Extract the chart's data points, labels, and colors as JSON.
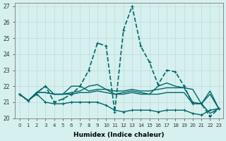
{
  "xlabel": "Humidex (Indice chaleur)",
  "bg_color": "#d6f0ef",
  "line_color": "#006666",
  "grid_color": "#c0dede",
  "xlim": [
    -0.5,
    23.5
  ],
  "ylim": [
    20,
    27.2
  ],
  "yticks": [
    20,
    21,
    22,
    23,
    24,
    25,
    26,
    27
  ],
  "xticks": [
    0,
    1,
    2,
    3,
    4,
    5,
    6,
    7,
    8,
    9,
    10,
    11,
    12,
    13,
    14,
    15,
    16,
    17,
    18,
    19,
    20,
    21,
    22,
    23
  ],
  "series": [
    {
      "y": [
        21.5,
        21.1,
        21.5,
        21.0,
        20.9,
        20.9,
        21.0,
        21.0,
        21.0,
        21.0,
        20.8,
        20.5,
        20.4,
        20.5,
        20.5,
        20.5,
        20.4,
        20.5,
        20.5,
        20.5,
        20.3,
        20.2,
        20.5,
        20.6
      ],
      "lw": 1.0,
      "ls": "-",
      "marker": true
    },
    {
      "y": [
        21.5,
        21.1,
        21.6,
        21.6,
        21.5,
        21.5,
        21.5,
        21.6,
        21.6,
        21.7,
        21.6,
        21.5,
        21.5,
        21.6,
        21.5,
        21.5,
        21.5,
        21.6,
        21.6,
        21.6,
        20.9,
        20.9,
        21.5,
        20.6
      ],
      "lw": 1.0,
      "ls": "-",
      "marker": false
    },
    {
      "y": [
        21.5,
        21.1,
        21.6,
        22.0,
        21.5,
        21.5,
        22.0,
        22.0,
        21.7,
        21.8,
        21.8,
        21.7,
        21.7,
        21.8,
        21.7,
        21.7,
        21.8,
        21.9,
        21.9,
        21.9,
        21.8,
        20.9,
        21.7,
        20.6
      ],
      "lw": 1.0,
      "ls": "-",
      "marker": false
    },
    {
      "y": [
        21.5,
        21.1,
        21.6,
        22.0,
        21.0,
        21.2,
        21.5,
        22.0,
        23.0,
        24.7,
        24.5,
        20.4,
        25.5,
        27.0,
        24.5,
        23.5,
        22.1,
        23.0,
        22.9,
        22.0,
        20.9,
        20.9,
        20.1,
        20.6
      ],
      "lw": 1.2,
      "ls": "--",
      "marker": true
    },
    {
      "y": [
        21.5,
        21.1,
        21.6,
        21.6,
        21.5,
        21.5,
        21.6,
        21.7,
        22.0,
        22.1,
        21.8,
        21.5,
        21.6,
        21.7,
        21.6,
        21.5,
        22.0,
        22.2,
        22.0,
        21.9,
        21.0,
        20.9,
        20.3,
        20.6
      ],
      "lw": 1.0,
      "ls": "-",
      "marker": false
    }
  ]
}
